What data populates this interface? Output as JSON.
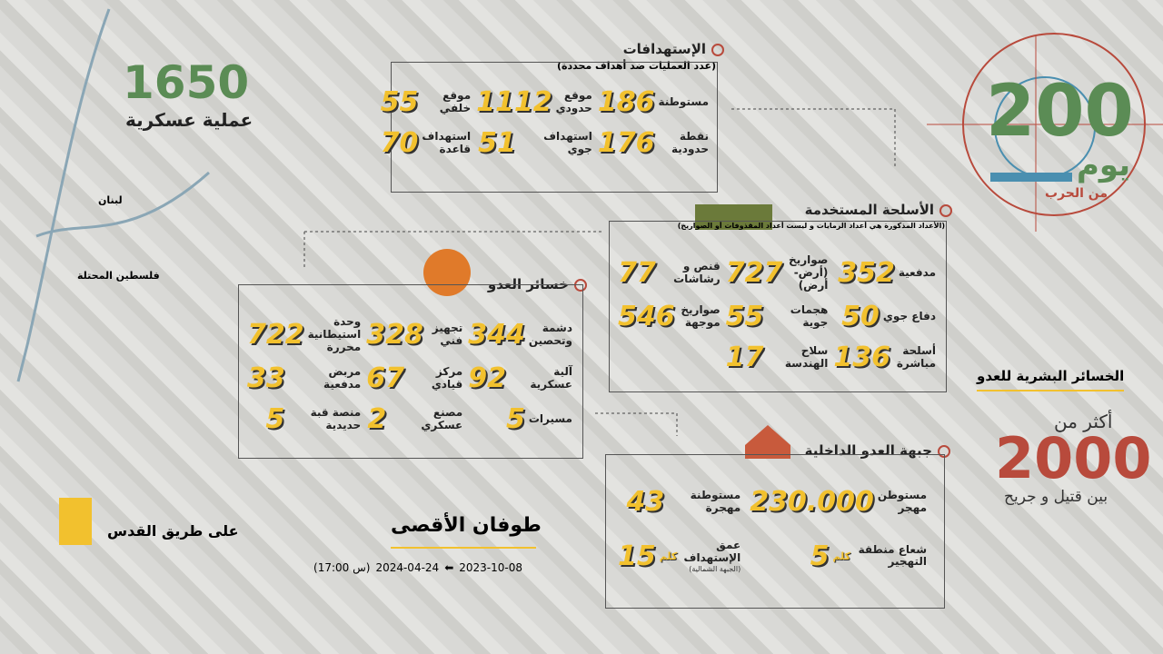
{
  "map": {
    "total": "1650",
    "total_label": "عملية عسكرية",
    "places": [
      "لبنان",
      "فلسطين المحتلة"
    ]
  },
  "targets": {
    "title": "الإستهدافات",
    "subtitle": "(عدد العمليات ضد أهداف محددة)",
    "items": [
      {
        "value": "186",
        "label": "مستوطنة"
      },
      {
        "value": "1112",
        "label": "موقع حدودي"
      },
      {
        "value": "55",
        "label": "موقع خلفي"
      },
      {
        "value": "176",
        "label": "نقطة حدودية"
      },
      {
        "value": "51",
        "label": "استهداف جوي"
      },
      {
        "value": "70",
        "label": "استهداف قاعدة"
      }
    ]
  },
  "days": {
    "value": "200",
    "label": "يوم",
    "sub": "من الحرب"
  },
  "weapons": {
    "title": "الأسلحة المستخدمة",
    "note": "(الأعداد المذكورة هي أعداد الرمايات و ليست أعداد المقذوفات أو الصواريخ)",
    "items": [
      {
        "value": "352",
        "label": "مدفعية"
      },
      {
        "value": "727",
        "label": "صواريخ (أرض-أرض)"
      },
      {
        "value": "77",
        "label": "قنص و رشاشات"
      },
      {
        "value": "50",
        "label": "دفاع جوي"
      },
      {
        "value": "55",
        "label": "هجمات جوية"
      },
      {
        "value": "546",
        "label": "صواريخ موجهة"
      },
      {
        "value": "136",
        "label": "أسلحة مباشرة"
      },
      {
        "value": "17",
        "label": "سلاح الهندسة"
      }
    ]
  },
  "losses": {
    "title": "خسائر العدو",
    "items": [
      {
        "value": "344",
        "label": "دشمة وتحصين"
      },
      {
        "value": "328",
        "label": "تجهيز فني"
      },
      {
        "value": "722",
        "label": "وحدة استيطانية محررة"
      },
      {
        "value": "92",
        "label": "آلية عسكرية"
      },
      {
        "value": "67",
        "label": "مركز قيادي"
      },
      {
        "value": "33",
        "label": "مربض مدفعية"
      },
      {
        "value": "5",
        "label": "مسيرات"
      },
      {
        "value": "2",
        "label": "مصنع عسكري"
      },
      {
        "value": "5",
        "label": "منصة قبة حديدية"
      }
    ]
  },
  "human": {
    "title": "الخسائر البشرية للعدو",
    "prefix": "أكثر من",
    "value": "2000",
    "suffix": "بين قتيل و جريح"
  },
  "home": {
    "title": "جبهة العدو الداخلية",
    "items": [
      {
        "value": "230.000",
        "label": "مستوطن مهجر"
      },
      {
        "value": "43",
        "label": "مستوطنة مهجرة"
      },
      {
        "value": "5",
        "unit": "كلم",
        "label": "شعاع منطقة التهجير"
      },
      {
        "value": "15",
        "unit": "كلم",
        "label": "عمق الإستهداف",
        "note": "(الجبهة الشمالية)"
      }
    ]
  },
  "footer": {
    "brand": "على طريق القدس",
    "campaign": "طوفان الأقصى",
    "date_start": "2023-10-08",
    "date_end": "2024-04-24",
    "time": "(س 17:00)"
  }
}
